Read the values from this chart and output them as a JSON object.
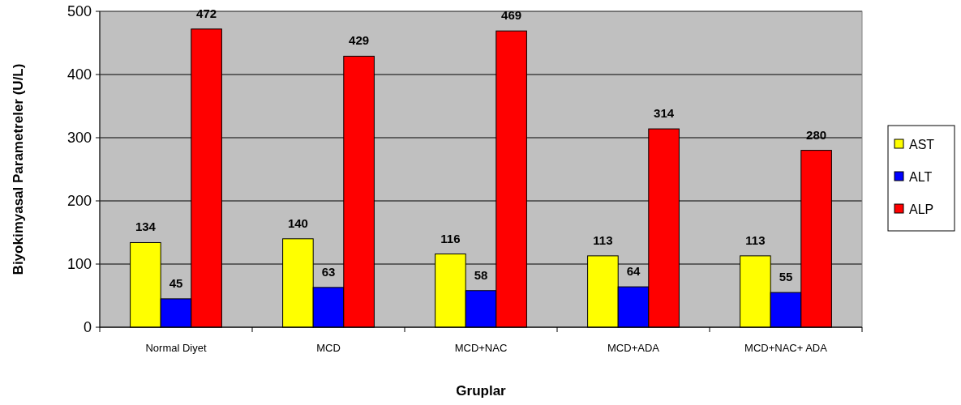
{
  "chart_data": {
    "type": "bar",
    "xlabel": "Gruplar",
    "ylabel": "Biyokimyasal Parametreler (U/L)",
    "categories": [
      "Normal Diyet",
      "MCD",
      "MCD+NAC",
      "MCD+ADA",
      "MCD+NAC+ ADA"
    ],
    "series": [
      {
        "name": "AST",
        "color": "#ffff00",
        "values": [
          134,
          140,
          116,
          113,
          113
        ]
      },
      {
        "name": "ALT",
        "color": "#0000ff",
        "values": [
          45,
          63,
          58,
          64,
          55
        ]
      },
      {
        "name": "ALP",
        "color": "#ff0000",
        "values": [
          472,
          429,
          469,
          314,
          280
        ]
      }
    ],
    "ylim": [
      0,
      500
    ],
    "yticks": [
      0,
      100,
      200,
      300,
      400,
      500
    ],
    "grid": "y",
    "legend": "right",
    "data_labels": true
  }
}
